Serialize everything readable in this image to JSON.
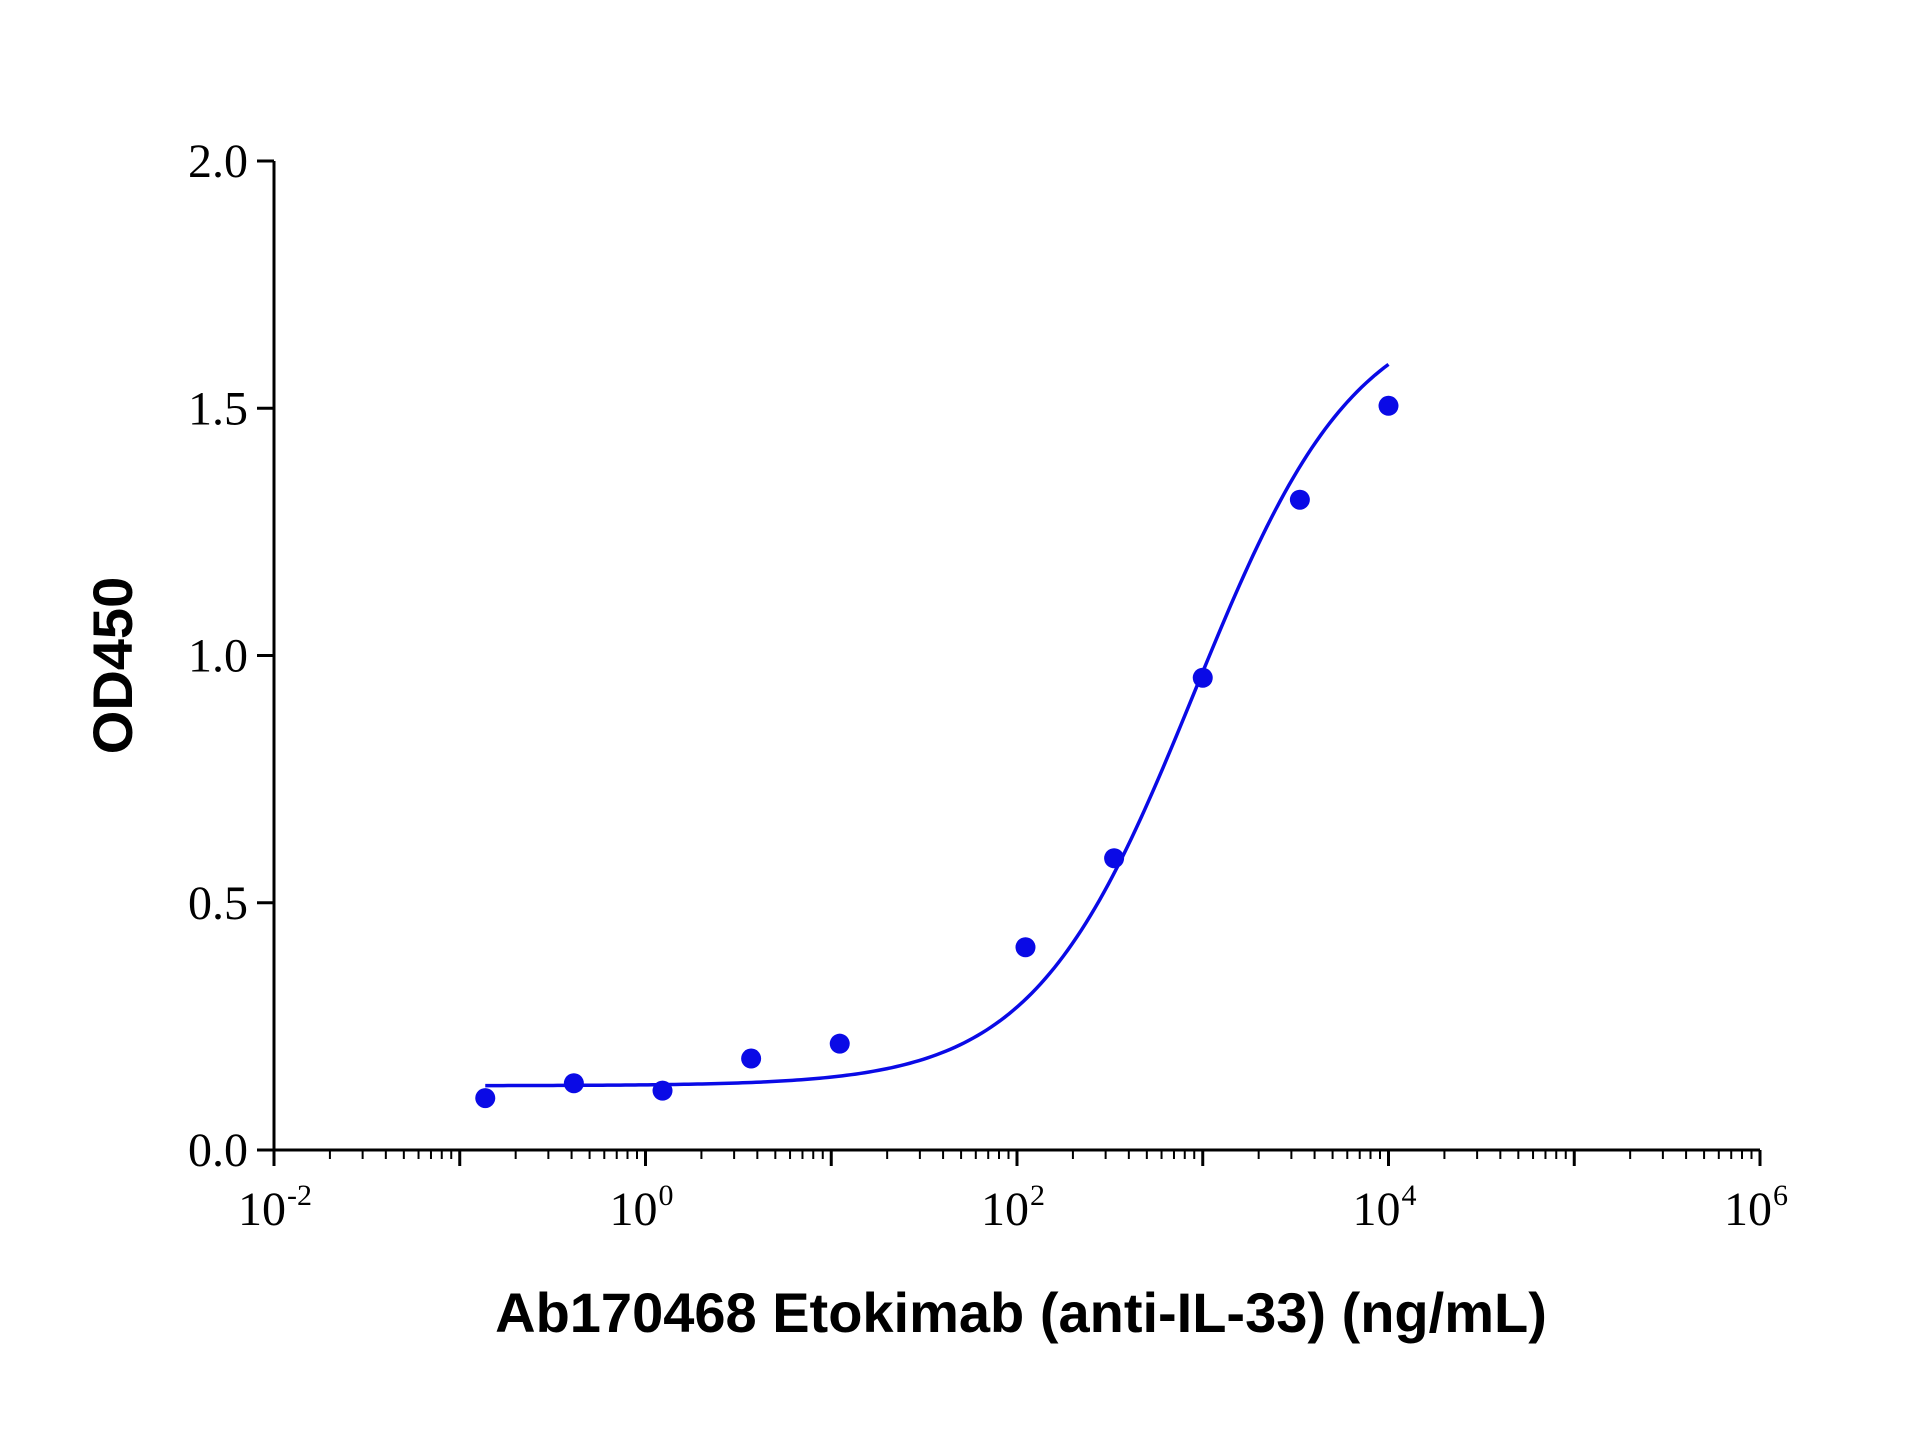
{
  "chart_data": {
    "type": "scatter",
    "title": "",
    "xlabel": "Ab170468 Etokimab (anti-IL-33) (ng/mL)",
    "ylabel": "OD450",
    "x_scale": "log10",
    "xlim": [
      0.01,
      1000000
    ],
    "ylim": [
      0.0,
      2.0
    ],
    "grid": false,
    "legend": "none",
    "x_ticks": [
      {
        "base": "10",
        "exp": "-2",
        "value": 0.01
      },
      {
        "base": "10",
        "exp": "0",
        "value": 1
      },
      {
        "base": "10",
        "exp": "2",
        "value": 100
      },
      {
        "base": "10",
        "exp": "4",
        "value": 10000
      },
      {
        "base": "10",
        "exp": "6",
        "value": 1000000
      }
    ],
    "y_ticks": [
      "0.0",
      "0.5",
      "1.0",
      "1.5",
      "2.0"
    ],
    "series": [
      {
        "color": "#0a0ae6",
        "marker": "circle",
        "points": [
          {
            "x": 0.1372,
            "y": 0.105
          },
          {
            "x": 0.4115,
            "y": 0.135
          },
          {
            "x": 1.235,
            "y": 0.12
          },
          {
            "x": 3.704,
            "y": 0.185
          },
          {
            "x": 11.11,
            "y": 0.215
          },
          {
            "x": 111.1,
            "y": 0.41
          },
          {
            "x": 333.3,
            "y": 0.59
          },
          {
            "x": 1000,
            "y": 0.955
          },
          {
            "x": 3333,
            "y": 1.315
          },
          {
            "x": 10000,
            "y": 1.505
          }
        ],
        "fit_curve": {
          "model": "4PL",
          "bottom": 0.13,
          "top": 1.72,
          "ec50": 900,
          "hill": 1.0,
          "x_range": [
            0.1372,
            10000
          ]
        }
      }
    ]
  }
}
